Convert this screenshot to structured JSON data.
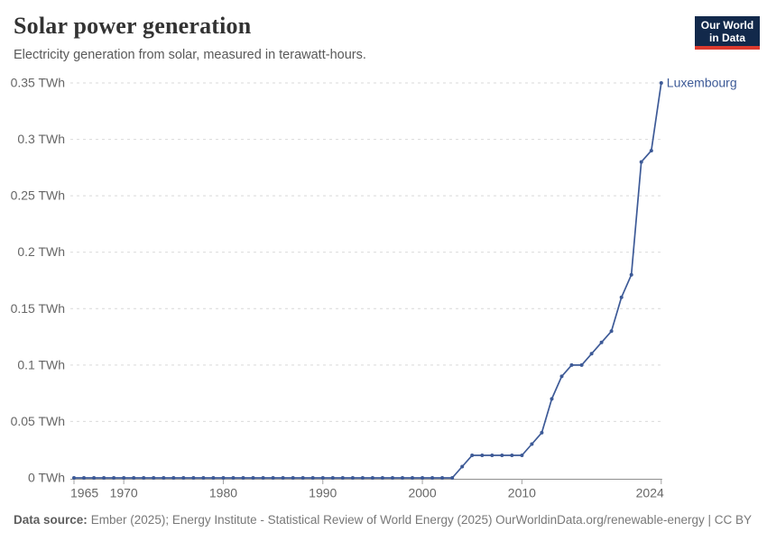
{
  "header": {
    "title": "Solar power generation",
    "subtitle": "Electricity generation from solar, measured in terawatt-hours.",
    "logo": {
      "line1": "Our World",
      "line2": "in Data"
    }
  },
  "footer": {
    "source_label": "Data source:",
    "source_text": "Ember (2025); Energy Institute - Statistical Review of World Energy (2025)",
    "link_text": "OurWorldinData.org/renewable-energy | CC BY"
  },
  "colors": {
    "line": "#3d5a97",
    "entity_label": "#3d5a97",
    "grid": "#d9d9d9",
    "axis": "#8f8f8f",
    "tick": "#a3a3a3",
    "axis_text": "#666666",
    "logo_navy": "#12294b",
    "logo_red": "#dc3a2e"
  },
  "chart_data": {
    "type": "line",
    "title": "Solar power generation",
    "unit": "TWh",
    "entity_label": "Luxembourg",
    "xlim": [
      1965,
      2024
    ],
    "ylim": [
      0,
      0.35
    ],
    "grid": "horizontal-dashed",
    "legend_position": "end-of-line-label",
    "x": [
      1965,
      1966,
      1967,
      1968,
      1969,
      1970,
      1971,
      1972,
      1973,
      1974,
      1975,
      1976,
      1977,
      1978,
      1979,
      1980,
      1981,
      1982,
      1983,
      1984,
      1985,
      1986,
      1987,
      1988,
      1989,
      1990,
      1991,
      1992,
      1993,
      1994,
      1995,
      1996,
      1997,
      1998,
      1999,
      2000,
      2001,
      2002,
      2003,
      2004,
      2005,
      2006,
      2007,
      2008,
      2009,
      2010,
      2011,
      2012,
      2013,
      2014,
      2015,
      2016,
      2017,
      2018,
      2019,
      2020,
      2021,
      2022,
      2023,
      2024
    ],
    "series": [
      {
        "name": "Luxembourg",
        "values": [
          0,
          0,
          0,
          0,
          0,
          0,
          0,
          0,
          0,
          0,
          0,
          0,
          0,
          0,
          0,
          0,
          0,
          0,
          0,
          0,
          0,
          0,
          0,
          0,
          0,
          0,
          0,
          0,
          0,
          0,
          0,
          0,
          0,
          0,
          0,
          0,
          0,
          0,
          0,
          0.01,
          0.02,
          0.02,
          0.02,
          0.02,
          0.02,
          0.02,
          0.03,
          0.04,
          0.07,
          0.09,
          0.1,
          0.1,
          0.11,
          0.12,
          0.13,
          0.16,
          0.18,
          0.28,
          0.29,
          0.35
        ]
      }
    ],
    "yticks": [
      {
        "value": 0,
        "label": "0 TWh"
      },
      {
        "value": 0.05,
        "label": "0.05 TWh"
      },
      {
        "value": 0.1,
        "label": "0.1 TWh"
      },
      {
        "value": 0.15,
        "label": "0.15 TWh"
      },
      {
        "value": 0.2,
        "label": "0.2 TWh"
      },
      {
        "value": 0.25,
        "label": "0.25 TWh"
      },
      {
        "value": 0.3,
        "label": "0.3 TWh"
      },
      {
        "value": 0.35,
        "label": "0.35 TWh"
      }
    ],
    "xticks": [
      {
        "year": 1965,
        "label": "1965",
        "align": "start"
      },
      {
        "year": 1970,
        "label": "1970",
        "align": "middle"
      },
      {
        "year": 1980,
        "label": "1980",
        "align": "middle"
      },
      {
        "year": 1990,
        "label": "1990",
        "align": "middle"
      },
      {
        "year": 2000,
        "label": "2000",
        "align": "middle"
      },
      {
        "year": 2010,
        "label": "2010",
        "align": "middle"
      },
      {
        "year": 2024,
        "label": "2024",
        "align": "end"
      }
    ]
  }
}
